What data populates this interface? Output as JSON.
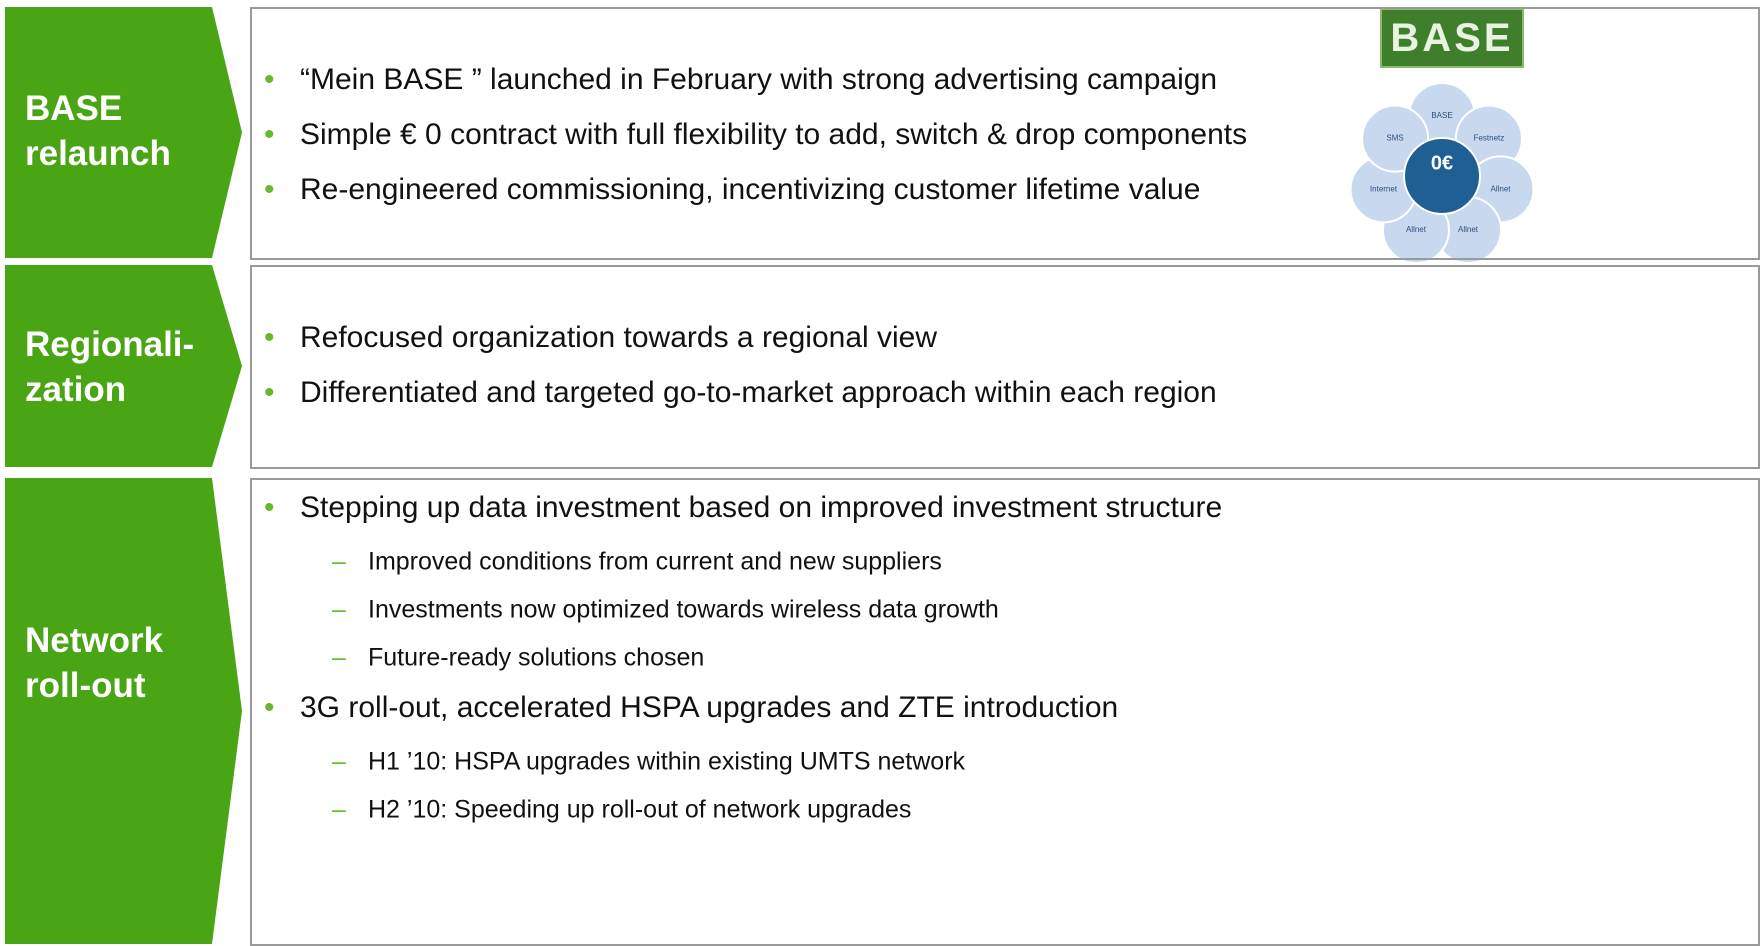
{
  "rows": [
    {
      "label": [
        "BASE",
        "relaunch"
      ],
      "bullets": [
        {
          "text": "“Mein BASE ” launched in February with strong advertising campaign"
        },
        {
          "text": "Simple € 0 contract with full flexibility to add, switch & drop components"
        },
        {
          "text": "Re-engineered commissioning, incentivizing customer lifetime value"
        }
      ]
    },
    {
      "label": [
        "Regionali-",
        "zation"
      ],
      "bullets": [
        {
          "text": "Refocused organization towards a regional view"
        },
        {
          "text": "Differentiated and targeted go-to-market approach within each region"
        }
      ]
    },
    {
      "label": [
        "Network",
        "roll-out"
      ],
      "bullets": [
        {
          "text": "Stepping up data investment based on improved investment structure",
          "sub": [
            "Improved conditions from current and new suppliers",
            "Investments now optimized towards wireless data growth",
            "Future-ready solutions chosen"
          ]
        },
        {
          "text": "3G roll-out, accelerated HSPA upgrades and ZTE introduction",
          "sub": [
            "H1 ’10: HSPA upgrades within existing UMTS network",
            "H2 ’10: Speeding up roll-out of network upgrades"
          ]
        }
      ]
    }
  ],
  "logo": "BASE",
  "diagram": {
    "center": "0€",
    "petals": [
      "BASE",
      "Festnetz",
      "Allnet",
      "Allnet",
      "Allnet",
      "Internet",
      "SMS"
    ]
  }
}
